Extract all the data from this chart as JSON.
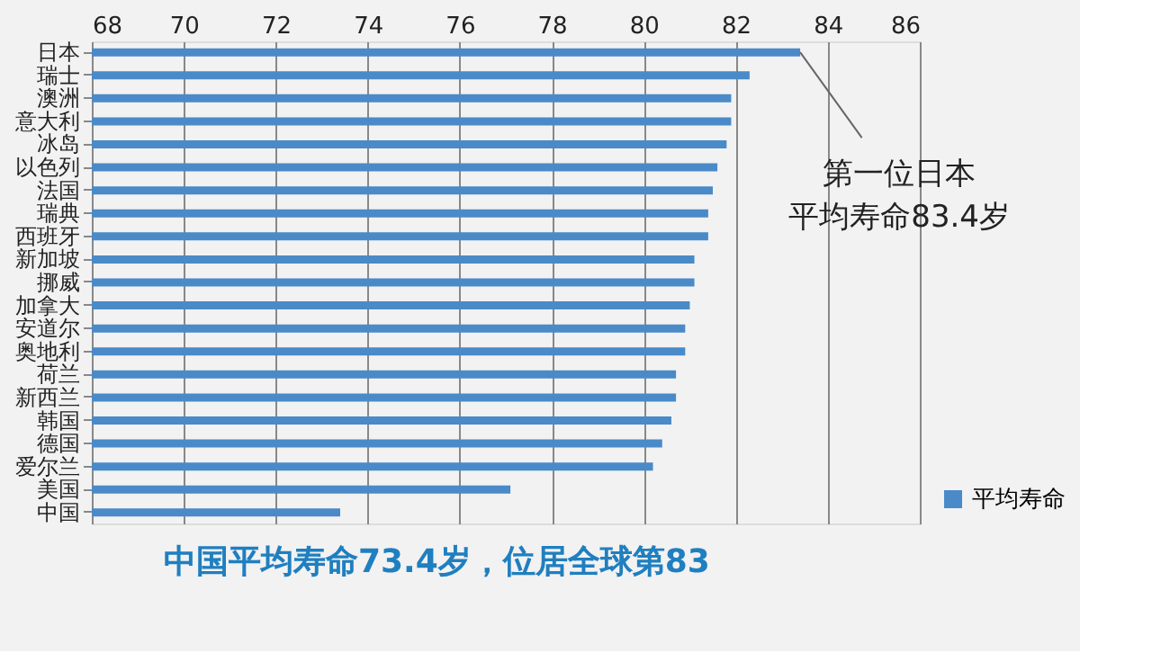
{
  "chart_data": {
    "type": "bar",
    "orientation": "horizontal",
    "categories": [
      "日本",
      "瑞士",
      "澳洲",
      "意大利",
      "冰岛",
      "以色列",
      "法国",
      "瑞典",
      "西班牙",
      "新加坡",
      "挪威",
      "加拿大",
      "安道尔",
      "奥地利",
      "荷兰",
      "新西兰",
      "韩国",
      "德国",
      "爱尔兰",
      "美国",
      "中国"
    ],
    "series": [
      {
        "name": "平均寿命",
        "color": "#4a8ac8",
        "values": [
          83.4,
          82.3,
          81.9,
          81.9,
          81.8,
          81.6,
          81.5,
          81.4,
          81.4,
          81.1,
          81.1,
          81.0,
          80.9,
          80.9,
          80.7,
          80.7,
          80.6,
          80.4,
          80.2,
          77.1,
          73.4
        ]
      }
    ],
    "xlim": [
      68,
      86
    ],
    "xticks": [
      68,
      70,
      72,
      74,
      76,
      78,
      80,
      82,
      84,
      86
    ],
    "grid": "x",
    "legend": "right",
    "annotations": [
      {
        "text": "第一位日本",
        "x": 83.4,
        "y": "日本"
      },
      "平均寿命83.4岁",
      "中国平均寿命73.4岁，位居全球第83"
    ]
  }
}
